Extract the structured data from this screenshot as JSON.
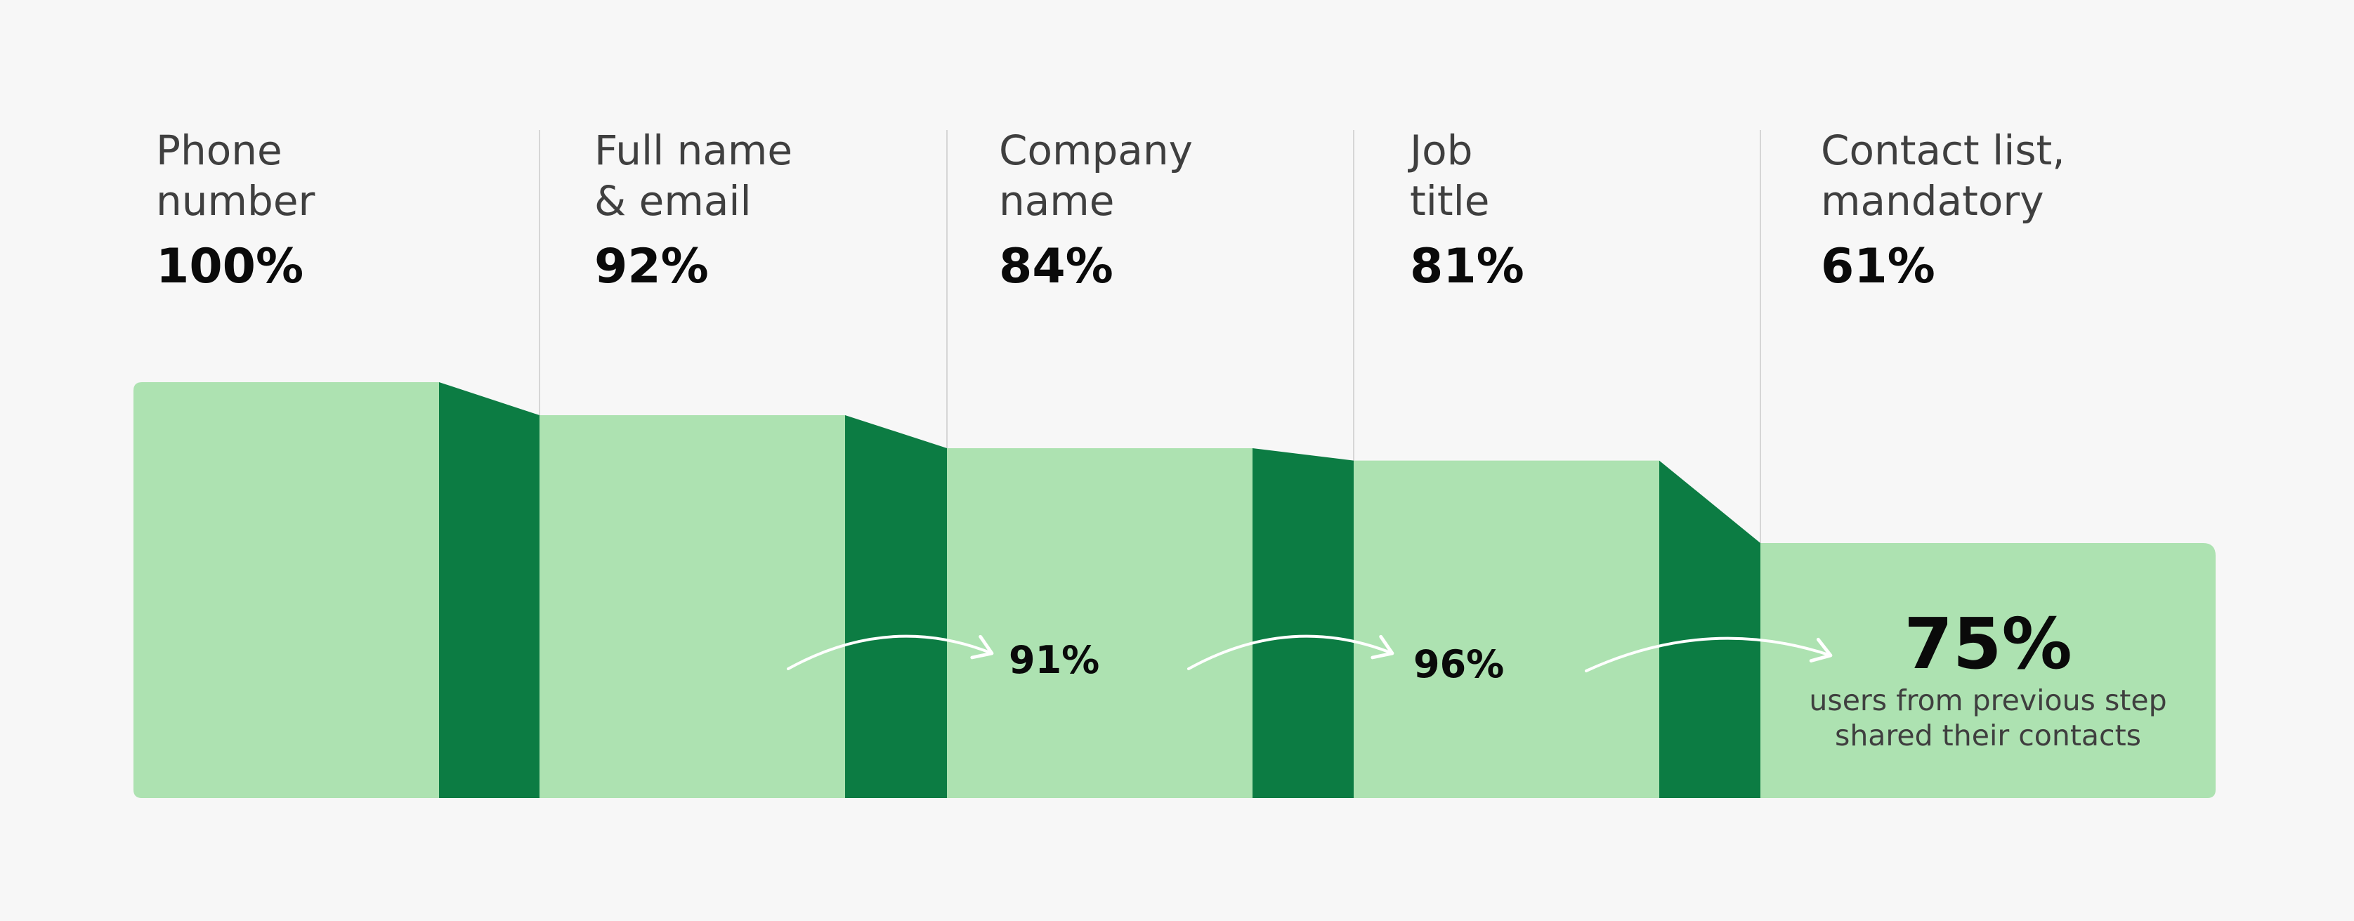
{
  "colors": {
    "background": "#f7f7f7",
    "step_fill": "#ade2b1",
    "drop_fill": "#0c7c43",
    "divider": "#d6d6d6",
    "arrow": "#ffffff"
  },
  "chart_data": {
    "type": "bar",
    "categories": [
      "Phone\nnumber",
      "Full name\n& email",
      "Company\nname",
      "Job\ntitle",
      "Contact list,\nmandatory"
    ],
    "series": [
      {
        "values": [
          100,
          92,
          84,
          81,
          61
        ]
      }
    ],
    "value_labels": [
      "100%",
      "92%",
      "84%",
      "81%",
      "61%"
    ],
    "step_conversions": [
      {
        "from": "Full name\n& email",
        "to": "Company\nname",
        "value": 91,
        "label": "91%"
      },
      {
        "from": "Company\nname",
        "to": "Job\ntitle",
        "value": 96,
        "label": "96%"
      },
      {
        "from": "Job\ntitle",
        "to": "Contact list,\nmandatory",
        "value": 75,
        "label": "75%"
      }
    ],
    "final_caption": "users from previous step\nshared their contacts",
    "ylim": [
      0,
      100
    ]
  }
}
